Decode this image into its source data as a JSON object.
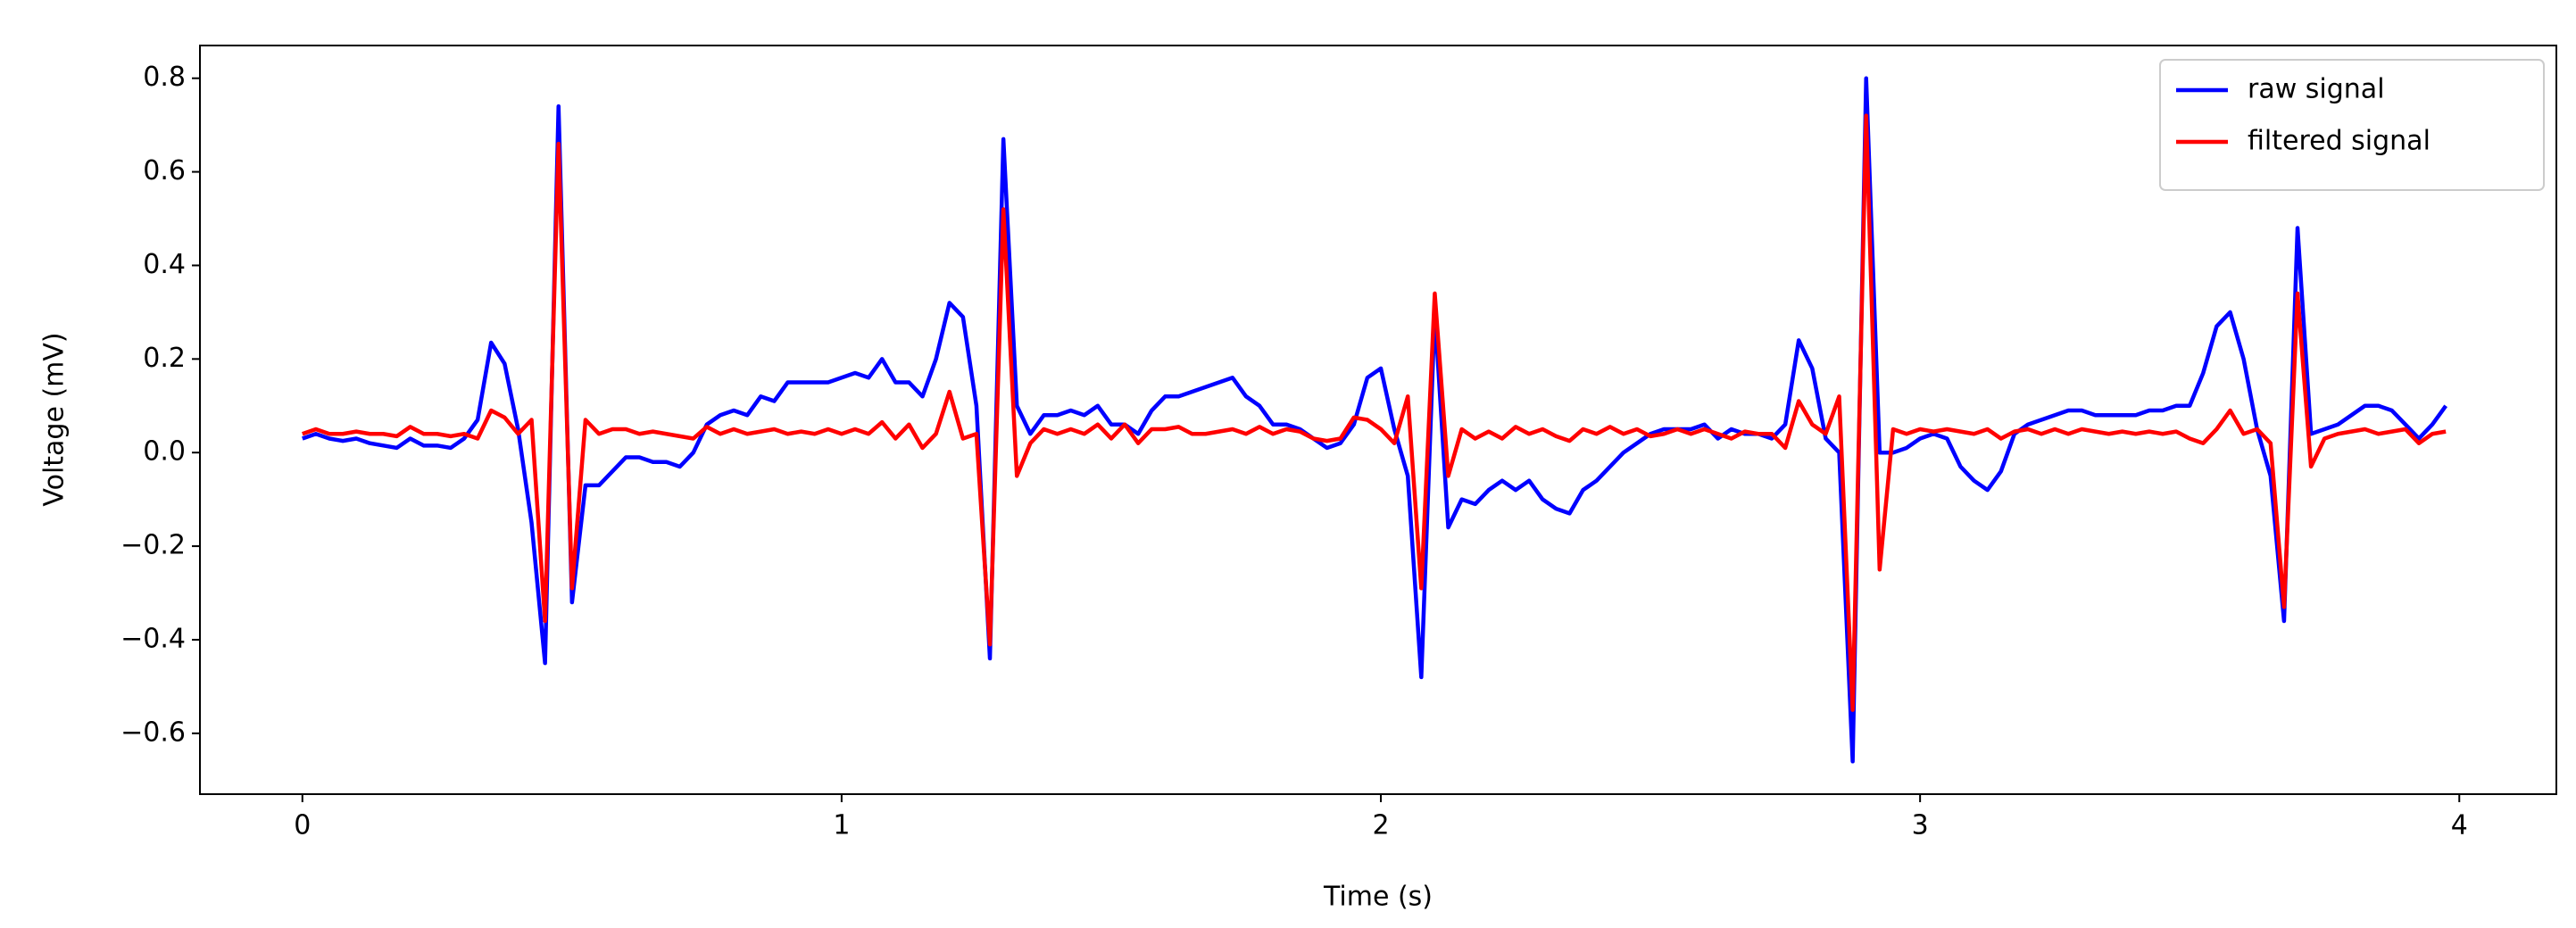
{
  "chart_data": {
    "type": "line",
    "x_label": "Time (s)",
    "y_label": "Voltage (mV)",
    "x": [
      0,
      0.025,
      0.05,
      0.075,
      0.1,
      0.125,
      0.15,
      0.175,
      0.2,
      0.225,
      0.25,
      0.275,
      0.3,
      0.325,
      0.35,
      0.375,
      0.4,
      0.425,
      0.45,
      0.475,
      0.5,
      0.525,
      0.55,
      0.575,
      0.6,
      0.625,
      0.65,
      0.675,
      0.7,
      0.725,
      0.75,
      0.775,
      0.8,
      0.825,
      0.85,
      0.875,
      0.9,
      0.925,
      0.95,
      0.975,
      1,
      1.025,
      1.05,
      1.075,
      1.1,
      1.125,
      1.15,
      1.175,
      1.2,
      1.225,
      1.25,
      1.275,
      1.3,
      1.325,
      1.35,
      1.375,
      1.4,
      1.425,
      1.45,
      1.475,
      1.5,
      1.525,
      1.55,
      1.575,
      1.6,
      1.625,
      1.65,
      1.675,
      1.7,
      1.725,
      1.75,
      1.775,
      1.8,
      1.825,
      1.85,
      1.875,
      1.9,
      1.925,
      1.95,
      1.975,
      2,
      2.025,
      2.05,
      2.075,
      2.1,
      2.125,
      2.15,
      2.175,
      2.2,
      2.225,
      2.25,
      2.275,
      2.3,
      2.325,
      2.35,
      2.375,
      2.4,
      2.425,
      2.45,
      2.475,
      2.5,
      2.525,
      2.55,
      2.575,
      2.6,
      2.625,
      2.65,
      2.675,
      2.7,
      2.725,
      2.75,
      2.775,
      2.8,
      2.825,
      2.85,
      2.875,
      2.9,
      2.925,
      2.95,
      2.975,
      3,
      3.025,
      3.05,
      3.075,
      3.1,
      3.125,
      3.15,
      3.175,
      3.2,
      3.225,
      3.25,
      3.275,
      3.3,
      3.325,
      3.35,
      3.375,
      3.4,
      3.425,
      3.45,
      3.475,
      3.5,
      3.525,
      3.55,
      3.575,
      3.6,
      3.625,
      3.65,
      3.675,
      3.7,
      3.725,
      3.75,
      3.775,
      3.8,
      3.825,
      3.85,
      3.875,
      3.9,
      3.925,
      3.95,
      3.975
    ],
    "series": [
      {
        "name": "raw signal",
        "color": "#0000ff",
        "values": [
          0.03,
          0.04,
          0.03,
          0.025,
          0.03,
          0.02,
          0.015,
          0.01,
          0.03,
          0.015,
          0.015,
          0.01,
          0.03,
          0.07,
          0.235,
          0.19,
          0.05,
          -0.15,
          -0.45,
          0.74,
          -0.32,
          -0.07,
          -0.07,
          -0.04,
          -0.01,
          -0.01,
          -0.02,
          -0.02,
          -0.03,
          0.0,
          0.06,
          0.08,
          0.09,
          0.08,
          0.12,
          0.11,
          0.15,
          0.15,
          0.15,
          0.15,
          0.16,
          0.17,
          0.16,
          0.2,
          0.15,
          0.15,
          0.12,
          0.2,
          0.32,
          0.29,
          0.1,
          -0.44,
          0.67,
          0.1,
          0.04,
          0.08,
          0.08,
          0.09,
          0.08,
          0.1,
          0.06,
          0.06,
          0.04,
          0.09,
          0.12,
          0.12,
          0.13,
          0.14,
          0.15,
          0.16,
          0.12,
          0.1,
          0.06,
          0.06,
          0.05,
          0.03,
          0.01,
          0.02,
          0.06,
          0.16,
          0.18,
          0.05,
          -0.05,
          -0.48,
          0.3,
          -0.16,
          -0.1,
          -0.11,
          -0.08,
          -0.06,
          -0.08,
          -0.06,
          -0.1,
          -0.12,
          -0.13,
          -0.08,
          -0.06,
          -0.03,
          0.0,
          0.02,
          0.04,
          0.05,
          0.05,
          0.05,
          0.06,
          0.03,
          0.05,
          0.04,
          0.04,
          0.03,
          0.06,
          0.24,
          0.18,
          0.03,
          0.0,
          -0.66,
          0.8,
          0.0,
          0.0,
          0.01,
          0.03,
          0.04,
          0.03,
          -0.03,
          -0.06,
          -0.08,
          -0.04,
          0.04,
          0.06,
          0.07,
          0.08,
          0.09,
          0.09,
          0.08,
          0.08,
          0.08,
          0.08,
          0.09,
          0.09,
          0.1,
          0.1,
          0.17,
          0.27,
          0.3,
          0.2,
          0.05,
          -0.05,
          -0.36,
          0.48,
          0.04,
          0.05,
          0.06,
          0.08,
          0.1,
          0.1,
          0.09,
          0.06,
          0.03,
          0.06,
          0.1
        ]
      },
      {
        "name": "filtered signal",
        "color": "#ff0000",
        "values": [
          0.04,
          0.05,
          0.04,
          0.04,
          0.045,
          0.04,
          0.04,
          0.035,
          0.055,
          0.04,
          0.04,
          0.035,
          0.04,
          0.03,
          0.09,
          0.075,
          0.04,
          0.07,
          -0.36,
          0.66,
          -0.29,
          0.07,
          0.04,
          0.05,
          0.05,
          0.04,
          0.045,
          0.04,
          0.035,
          0.03,
          0.055,
          0.04,
          0.05,
          0.04,
          0.045,
          0.05,
          0.04,
          0.045,
          0.04,
          0.05,
          0.04,
          0.05,
          0.04,
          0.065,
          0.03,
          0.06,
          0.01,
          0.04,
          0.13,
          0.03,
          0.04,
          -0.41,
          0.52,
          -0.05,
          0.02,
          0.05,
          0.04,
          0.05,
          0.04,
          0.06,
          0.03,
          0.06,
          0.02,
          0.05,
          0.05,
          0.055,
          0.04,
          0.04,
          0.045,
          0.05,
          0.04,
          0.055,
          0.04,
          0.05,
          0.045,
          0.03,
          0.025,
          0.03,
          0.075,
          0.07,
          0.05,
          0.02,
          0.12,
          -0.29,
          0.34,
          -0.05,
          0.05,
          0.03,
          0.045,
          0.03,
          0.055,
          0.04,
          0.05,
          0.035,
          0.025,
          0.05,
          0.04,
          0.055,
          0.04,
          0.05,
          0.035,
          0.04,
          0.05,
          0.04,
          0.05,
          0.04,
          0.03,
          0.045,
          0.04,
          0.04,
          0.01,
          0.11,
          0.06,
          0.04,
          0.12,
          -0.55,
          0.72,
          -0.25,
          0.05,
          0.04,
          0.05,
          0.045,
          0.05,
          0.045,
          0.04,
          0.05,
          0.03,
          0.045,
          0.05,
          0.04,
          0.05,
          0.04,
          0.05,
          0.045,
          0.04,
          0.045,
          0.04,
          0.045,
          0.04,
          0.045,
          0.03,
          0.02,
          0.05,
          0.09,
          0.04,
          0.05,
          0.02,
          -0.33,
          0.34,
          -0.03,
          0.03,
          0.04,
          0.045,
          0.05,
          0.04,
          0.045,
          0.05,
          0.02,
          0.04,
          0.045
        ]
      }
    ],
    "xlim": [
      -0.19,
      4.18
    ],
    "ylim": [
      -0.73,
      0.87
    ],
    "xticks": [
      0,
      1,
      2,
      3,
      4
    ],
    "yticks": [
      {
        "value": -0.6,
        "label": "−0.6"
      },
      {
        "value": -0.4,
        "label": "−0.4"
      },
      {
        "value": -0.2,
        "label": "−0.2"
      },
      {
        "value": 0,
        "label": "0.0"
      },
      0.2,
      0.4,
      0.6,
      0.8
    ],
    "legend": "upper right",
    "line_width": 4.5
  }
}
